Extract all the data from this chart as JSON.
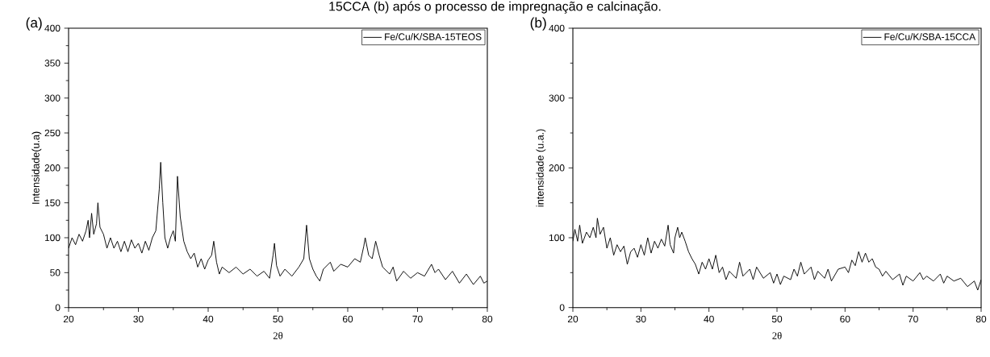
{
  "chart_data": [
    {
      "type": "line",
      "xlabel": "2θ",
      "ylabel": "Intensidade(u.a)",
      "annotations": [
        "15CCA (b) após o processo de impregnação e calcinação.",
        "(a)"
      ],
      "xlim": [
        20,
        80
      ],
      "ylim": [
        0,
        400
      ],
      "xticks": [
        20,
        30,
        40,
        50,
        60,
        70,
        80
      ],
      "yticks": [
        0,
        50,
        100,
        150,
        200,
        250,
        300,
        350,
        400
      ],
      "legend": "top right",
      "marker": "none",
      "line_style": "solid",
      "grid": false,
      "series": [
        {
          "name": "Fe/Cu/K/SBA-15TEOS",
          "color": "#000000",
          "x": [
            20,
            20.5,
            21,
            21.5,
            22,
            22.5,
            22.8,
            23,
            23.3,
            23.6,
            24,
            24.2,
            24.5,
            25,
            25.5,
            26,
            26.5,
            27,
            27.5,
            28,
            28.5,
            29,
            29.5,
            30,
            30.5,
            31,
            31.5,
            32,
            32.5,
            33,
            33.2,
            33.5,
            33.8,
            34.2,
            34.6,
            35,
            35.3,
            35.6,
            36,
            36.5,
            37,
            37.5,
            38,
            38.5,
            39,
            39.5,
            40,
            40.5,
            40.8,
            41.2,
            41.6,
            42,
            43,
            44,
            45,
            46,
            47,
            48,
            48.8,
            49.3,
            49.5,
            49.8,
            50.3,
            51,
            52,
            53,
            53.7,
            54.1,
            54.5,
            55,
            55.5,
            56,
            56.5,
            57.5,
            58,
            59,
            60,
            61,
            61.8,
            62.3,
            62.5,
            63,
            63.5,
            64,
            64.5,
            65,
            66,
            66.5,
            67,
            68,
            69,
            70,
            71,
            72,
            72.5,
            73,
            74,
            75,
            76,
            77,
            78,
            79,
            79.5,
            80
          ],
          "values": [
            85,
            100,
            90,
            105,
            95,
            110,
            125,
            100,
            135,
            105,
            120,
            150,
            115,
            105,
            85,
            100,
            85,
            95,
            80,
            95,
            80,
            97,
            85,
            92,
            78,
            95,
            82,
            100,
            110,
            170,
            208,
            150,
            100,
            85,
            100,
            110,
            95,
            188,
            130,
            95,
            80,
            70,
            78,
            58,
            70,
            55,
            68,
            75,
            95,
            65,
            48,
            58,
            50,
            58,
            48,
            55,
            45,
            52,
            42,
            75,
            92,
            60,
            45,
            55,
            45,
            58,
            70,
            118,
            70,
            55,
            45,
            38,
            55,
            65,
            52,
            62,
            58,
            70,
            65,
            88,
            100,
            75,
            70,
            95,
            75,
            58,
            48,
            58,
            38,
            52,
            42,
            50,
            45,
            62,
            50,
            55,
            40,
            52,
            35,
            48,
            33,
            45,
            35,
            38
          ]
        }
      ]
    },
    {
      "type": "line",
      "xlabel": "2θ",
      "ylabel": "intensidade (u.a.)",
      "annotations": [
        "(b)"
      ],
      "xlim": [
        20,
        80
      ],
      "ylim": [
        0,
        400
      ],
      "xticks": [
        20,
        30,
        40,
        50,
        60,
        70,
        80
      ],
      "yticks": [
        0,
        100,
        200,
        300,
        400
      ],
      "legend": "top right",
      "marker": "none",
      "line_style": "solid",
      "grid": false,
      "series": [
        {
          "name": "Fe/Cu/K/SBA-15CCA",
          "color": "#000000",
          "x": [
            20,
            20.3,
            20.7,
            21,
            21.4,
            22,
            22.5,
            23,
            23.4,
            23.6,
            24,
            24.5,
            25,
            25.5,
            26,
            26.5,
            27,
            27.5,
            28,
            28.5,
            29,
            29.5,
            30,
            30.5,
            31,
            31.5,
            32,
            32.5,
            33,
            33.5,
            34,
            34.3,
            34.8,
            35,
            35.4,
            35.7,
            36,
            36.5,
            37,
            37.5,
            38,
            38.5,
            39,
            39.5,
            40,
            40.5,
            41,
            41.5,
            42,
            42.5,
            43,
            44,
            44.5,
            45,
            46,
            46.5,
            47,
            48,
            49,
            49.5,
            50,
            50.5,
            51,
            52,
            52.5,
            53,
            53.5,
            54,
            55,
            55.5,
            56,
            57,
            57.5,
            58,
            59,
            60,
            60.5,
            61,
            61.5,
            62,
            62.5,
            63,
            63.5,
            64,
            64.5,
            65,
            65.5,
            66,
            67,
            68,
            68.5,
            69,
            70,
            71,
            71.5,
            72,
            73,
            74,
            74.5,
            75,
            76,
            77,
            78,
            79,
            79.5,
            80
          ],
          "values": [
            95,
            112,
            95,
            118,
            92,
            108,
            100,
            115,
            100,
            128,
            105,
            115,
            85,
            100,
            75,
            90,
            80,
            88,
            62,
            80,
            85,
            72,
            90,
            75,
            100,
            78,
            95,
            85,
            98,
            88,
            118,
            90,
            78,
            100,
            115,
            100,
            108,
            95,
            80,
            70,
            62,
            48,
            65,
            55,
            70,
            55,
            75,
            50,
            58,
            40,
            52,
            42,
            65,
            45,
            55,
            40,
            58,
            42,
            50,
            35,
            48,
            33,
            45,
            40,
            55,
            45,
            65,
            48,
            58,
            40,
            52,
            42,
            55,
            38,
            55,
            58,
            50,
            68,
            60,
            80,
            65,
            78,
            65,
            70,
            58,
            55,
            45,
            52,
            40,
            48,
            32,
            45,
            38,
            50,
            40,
            45,
            38,
            48,
            35,
            45,
            38,
            42,
            30,
            38,
            25,
            40
          ]
        }
      ]
    }
  ]
}
